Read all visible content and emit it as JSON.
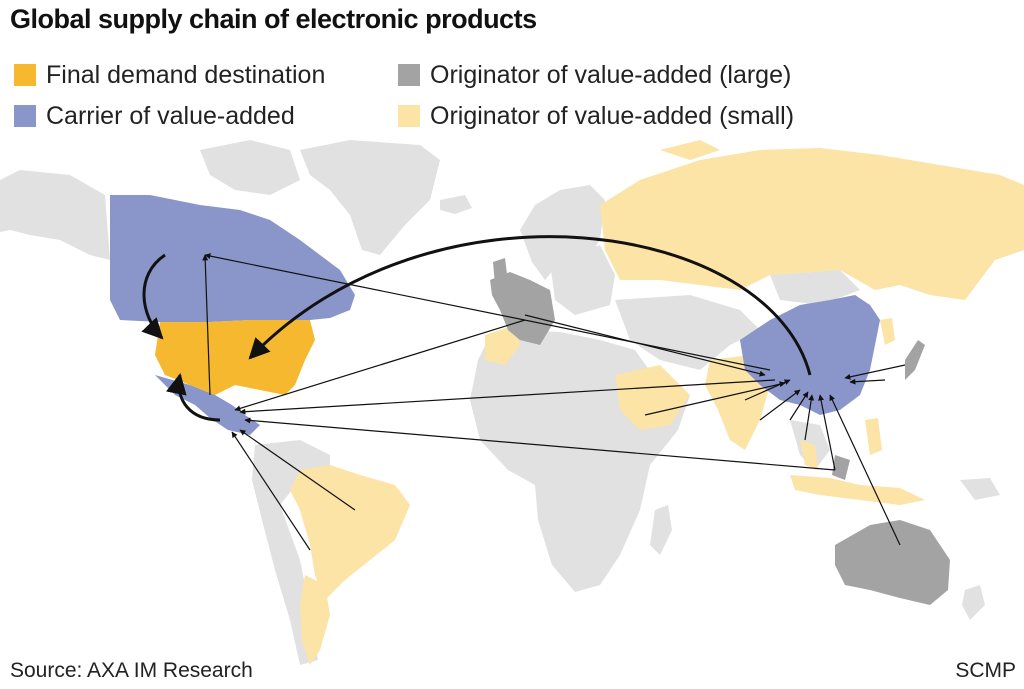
{
  "title": "Global supply chain of electronic products",
  "legend": [
    {
      "label": "Final demand destination",
      "color": "#F5B82E",
      "key": "final"
    },
    {
      "label": "Carrier of value-added",
      "color": "#8A96C9",
      "key": "carrier"
    },
    {
      "label": "Originator of value-added (large)",
      "color": "#A3A3A3",
      "key": "large"
    },
    {
      "label": "Originator of value-added (small)",
      "color": "#FCE3A6",
      "key": "small"
    }
  ],
  "colors": {
    "land": "#E1E1E1",
    "final": "#F5B82E",
    "carrier": "#8A96C9",
    "large": "#A3A3A3",
    "small": "#FCE3A6",
    "arrow": "#111111"
  },
  "footer": {
    "source": "Source: AXA IM Research",
    "brand": "SCMP"
  }
}
